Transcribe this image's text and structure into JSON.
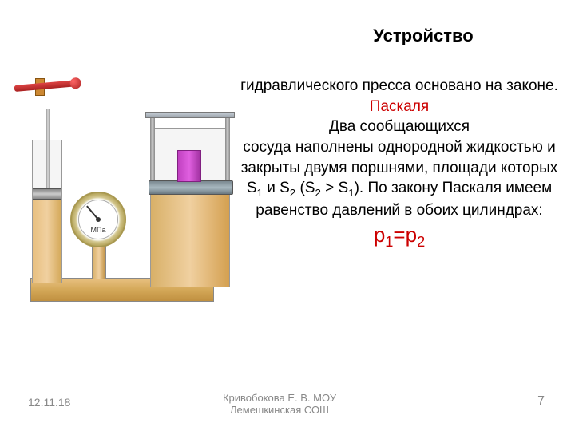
{
  "title": "Устройство",
  "body": {
    "line1": "гидравлического пресса основано на законе.",
    "pascal": "Паскаля",
    "line2": "Два сообщающихся",
    "line3": "сосуда наполнены однородной жидкостью и закрыты двумя поршнями, площади которых S",
    "sub1": "1",
    "and": " и S",
    "sub2": "2",
    "cond_open": " (S",
    "cond_s2sub": "2",
    "cond_gt": " > S",
    "cond_s1sub": "1",
    "cond_close": "). По закону Паскаля имеем равенство давлений в обоих цилиндрах: ",
    "formula_p1": "p",
    "formula_p1sub": "1",
    "formula_eq": "=p",
    "formula_p2sub": "2"
  },
  "footer": {
    "date": "12.11.18",
    "author": "Кривобокова Е. В. МОУ Лемешкинская СОШ",
    "page": "7"
  },
  "gauge": {
    "unit": "МПа"
  },
  "colors": {
    "liquid": "#e0b870",
    "red_text": "#cc0000",
    "piston": "#8898a0",
    "test_block": "#c040c0",
    "handle": "#c03030",
    "background": "#ffffff"
  },
  "fontsizes": {
    "title": 22,
    "body": 19,
    "formula": 26,
    "footer": 14
  }
}
